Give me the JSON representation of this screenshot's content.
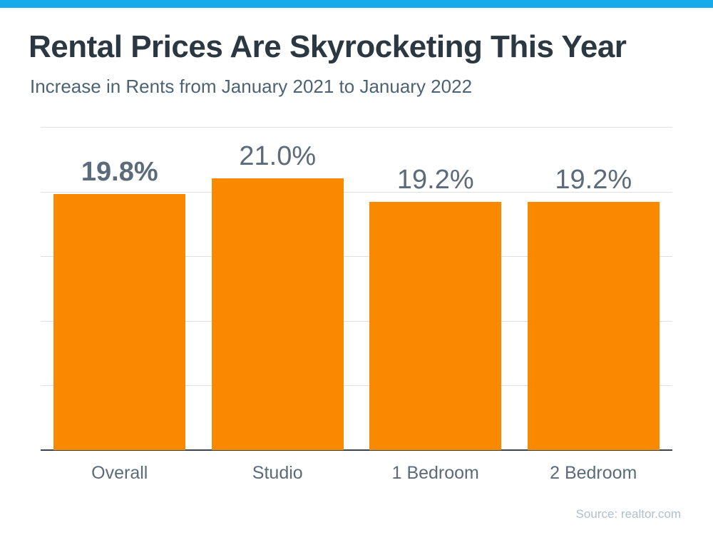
{
  "colors": {
    "accent": "#17abec",
    "bar": "#f98a00",
    "grid": "#dcdfe3",
    "axis": "#39434b",
    "title": "#2b3842",
    "subtitle": "#4c6373",
    "label": "#5b6b7a",
    "source": "#b3c0ca"
  },
  "header": {
    "title": "Rental Prices Are Skyrocketing This Year",
    "subtitle": "Increase in Rents from January 2021 to January 2022"
  },
  "footer": {
    "source": "Source: realtor.com"
  },
  "chart_data": {
    "type": "bar",
    "title": "Rental Prices Are Skyrocketing This Year",
    "subtitle": "Increase in Rents from January 2021 to January 2022",
    "categories": [
      "Overall",
      "Studio",
      "1 Bedroom",
      "2 Bedroom"
    ],
    "values": [
      19.8,
      21.0,
      19.2,
      19.2
    ],
    "value_labels": [
      "19.8%",
      "21.0%",
      "19.2%",
      "19.2%"
    ],
    "emphasized_label_index": 0,
    "xlabel": "",
    "ylabel": "",
    "ylim": [
      0,
      25
    ],
    "gridline_interval": 5,
    "grid": true,
    "legend": false,
    "bar_color": "#f98a00",
    "source": "Source: realtor.com"
  }
}
